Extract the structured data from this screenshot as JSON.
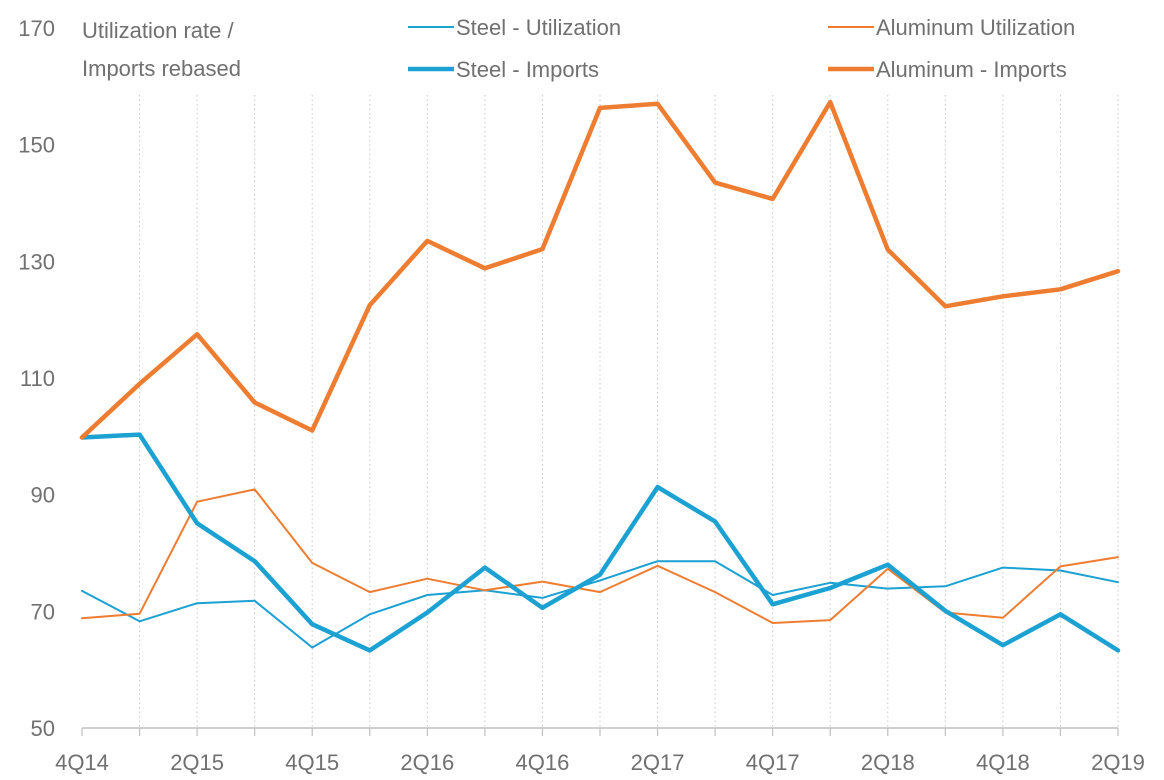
{
  "chart_data": {
    "type": "line",
    "title": "",
    "ylabel_lines": [
      "Utilization rate /",
      "Imports rebased"
    ],
    "xlabel": "",
    "ylim": [
      50,
      170
    ],
    "yticks": [
      50,
      70,
      90,
      110,
      130,
      150,
      170
    ],
    "grid": {
      "vertical": true,
      "horizontal": false,
      "style": "dotted"
    },
    "legend_position": "top",
    "x": [
      "4Q14",
      "1Q15",
      "2Q15",
      "3Q15",
      "4Q15",
      "1Q16",
      "2Q16",
      "3Q16",
      "4Q16",
      "1Q17",
      "2Q17",
      "3Q17",
      "4Q17",
      "1Q18",
      "2Q18",
      "3Q18",
      "4Q18",
      "1Q19",
      "2Q19"
    ],
    "xtick_labels": [
      "4Q14",
      "",
      "2Q15",
      "",
      "4Q15",
      "",
      "2Q16",
      "",
      "4Q16",
      "",
      "2Q17",
      "",
      "4Q17",
      "",
      "2Q18",
      "",
      "4Q18",
      "",
      "2Q19"
    ],
    "series": [
      {
        "name": "Steel - Utilization",
        "color": "#1ba1d2",
        "weight": "thin",
        "values": [
          73.5,
          68.3,
          71.4,
          71.8,
          63.8,
          69.5,
          72.8,
          73.6,
          72.3,
          75.3,
          78.6,
          78.6,
          72.8,
          74.9,
          73.9,
          74.3,
          77.5,
          77.0,
          75.0
        ]
      },
      {
        "name": "Aluminum Utilization",
        "color": "#ee7d31",
        "weight": "thin",
        "values": [
          68.8,
          69.6,
          88.8,
          90.9,
          78.3,
          73.3,
          75.6,
          73.6,
          75.1,
          73.3,
          77.8,
          73.3,
          68.0,
          68.5,
          77.3,
          69.8,
          68.9,
          77.7,
          79.3
        ]
      },
      {
        "name": "Steel - Imports",
        "color": "#1ba1d2",
        "weight": "thick",
        "values": [
          99.8,
          100.3,
          85.1,
          78.6,
          67.8,
          63.3,
          69.8,
          77.5,
          70.6,
          76.3,
          91.3,
          85.4,
          71.2,
          74.0,
          78.0,
          70.1,
          64.2,
          69.5,
          63.3
        ]
      },
      {
        "name": "Aluminum - Imports",
        "color": "#ee7d31",
        "weight": "thick",
        "values": [
          99.8,
          109.0,
          117.5,
          105.8,
          101.0,
          122.5,
          133.5,
          128.8,
          132.1,
          156.3,
          157.0,
          143.5,
          140.7,
          157.3,
          132.0,
          122.3,
          124.0,
          125.2,
          128.3
        ]
      }
    ]
  }
}
